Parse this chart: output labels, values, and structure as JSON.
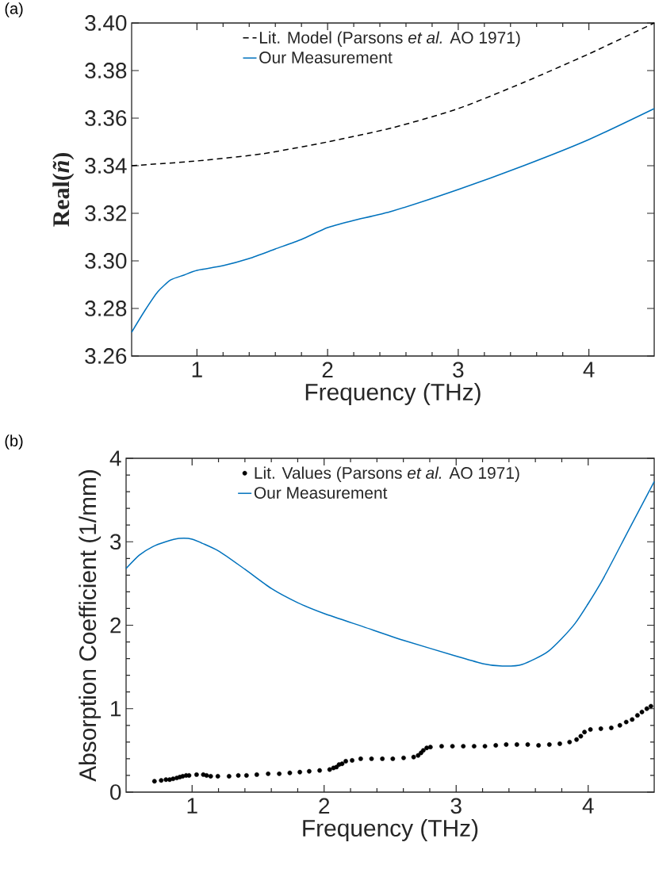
{
  "chart_data": [
    {
      "type": "line",
      "xlabel": "Frequency (THz)",
      "ylabel": "**Real**(*ñ*)",
      "annotations": [
        "(a)"
      ],
      "xlim": [
        0.5,
        4.5
      ],
      "xticks": [
        1,
        2,
        3,
        4
      ],
      "ylim": [
        3.26,
        3.4
      ],
      "yticks": [
        {
          "value": 3.26,
          "label": "3.26"
        },
        {
          "value": 3.28,
          "label": "3.28"
        },
        {
          "value": 3.3,
          "label": "3.30"
        },
        {
          "value": 3.32,
          "label": "3.32"
        },
        {
          "value": 3.34,
          "label": "3.34"
        },
        {
          "value": 3.36,
          "label": "3.36"
        },
        {
          "value": 3.38,
          "label": "3.38"
        },
        {
          "value": 3.4,
          "label": "3.40"
        }
      ],
      "legend": "top",
      "grid": false,
      "series": [
        {
          "name": "Lit. Model (Parsons *et al.* AO 1971)",
          "color": "#000000",
          "line_style": "dashed",
          "x": [
            0.5,
            1.0,
            1.5,
            2.0,
            2.5,
            3.0,
            3.5,
            4.0,
            4.5
          ],
          "values": [
            3.34,
            3.342,
            3.345,
            3.35,
            3.356,
            3.364,
            3.375,
            3.387,
            3.4
          ]
        },
        {
          "name": "Our Measurement",
          "color": "#0072bd",
          "line_style": "solid",
          "x": [
            0.5,
            0.6,
            0.7,
            0.8,
            0.9,
            1.0,
            1.2,
            1.4,
            1.6,
            1.8,
            2.0,
            2.2,
            2.5,
            3.0,
            3.5,
            4.0,
            4.5
          ],
          "values": [
            3.27,
            3.279,
            3.287,
            3.292,
            3.294,
            3.296,
            3.298,
            3.301,
            3.305,
            3.309,
            3.314,
            3.317,
            3.321,
            3.33,
            3.34,
            3.351,
            3.364
          ]
        }
      ]
    },
    {
      "type": "line",
      "xlabel": "Frequency (THz)",
      "ylabel": "Absorption Coefficient (1/mm)",
      "annotations": [
        "(b)"
      ],
      "xlim": [
        0.5,
        4.5
      ],
      "xticks": [
        1,
        2,
        3,
        4
      ],
      "ylim": [
        0,
        4
      ],
      "yticks": [
        0,
        1,
        2,
        3,
        4
      ],
      "legend": "top",
      "grid": false,
      "marker": "circle",
      "series": [
        {
          "name": "Lit. Values (Parsons *et al.* AO 1971)",
          "type": "scatter",
          "color": "#000000",
          "x": [
            0.715,
            0.766,
            0.802,
            0.83,
            0.856,
            0.884,
            0.907,
            0.929,
            0.955,
            0.977,
            1.034,
            1.085,
            1.11,
            1.141,
            1.195,
            1.28,
            1.35,
            1.412,
            1.49,
            1.576,
            1.66,
            1.74,
            1.816,
            1.887,
            1.966,
            2.042,
            2.071,
            2.093,
            2.113,
            2.136,
            2.164,
            2.212,
            2.277,
            2.359,
            2.441,
            2.52,
            2.602,
            2.678,
            2.712,
            2.734,
            2.751,
            2.777,
            2.805,
            2.89,
            2.972,
            3.054,
            3.136,
            3.218,
            3.3,
            3.379,
            3.46,
            3.542,
            3.624,
            3.706,
            3.785,
            3.859,
            3.912,
            3.944,
            3.972,
            4.017,
            4.096,
            4.175,
            4.24,
            4.288,
            4.333,
            4.373,
            4.407,
            4.444,
            4.475
          ],
          "values": [
            0.13,
            0.14,
            0.15,
            0.15,
            0.16,
            0.17,
            0.18,
            0.19,
            0.2,
            0.2,
            0.21,
            0.21,
            0.2,
            0.19,
            0.19,
            0.19,
            0.2,
            0.2,
            0.21,
            0.22,
            0.22,
            0.23,
            0.24,
            0.25,
            0.26,
            0.27,
            0.29,
            0.3,
            0.33,
            0.34,
            0.37,
            0.38,
            0.4,
            0.4,
            0.4,
            0.4,
            0.41,
            0.42,
            0.44,
            0.47,
            0.5,
            0.53,
            0.54,
            0.55,
            0.55,
            0.55,
            0.55,
            0.55,
            0.56,
            0.57,
            0.57,
            0.57,
            0.56,
            0.57,
            0.58,
            0.6,
            0.63,
            0.67,
            0.72,
            0.75,
            0.76,
            0.77,
            0.8,
            0.84,
            0.87,
            0.92,
            0.96,
            1.0,
            1.03
          ]
        },
        {
          "name": "Our Measurement",
          "color": "#0072bd",
          "line_style": "solid",
          "marker": "none",
          "x": [
            0.5,
            0.6,
            0.7,
            0.8,
            0.9,
            1.0,
            1.2,
            1.4,
            1.6,
            1.8,
            2.0,
            2.3,
            2.6,
            3.0,
            3.2,
            3.35,
            3.5,
            3.7,
            3.9,
            4.1,
            4.3,
            4.5
          ],
          "values": [
            2.68,
            2.84,
            2.94,
            3.0,
            3.04,
            3.03,
            2.89,
            2.67,
            2.44,
            2.27,
            2.14,
            1.98,
            1.82,
            1.63,
            1.54,
            1.51,
            1.53,
            1.69,
            2.02,
            2.52,
            3.12,
            3.72
          ]
        }
      ]
    }
  ]
}
